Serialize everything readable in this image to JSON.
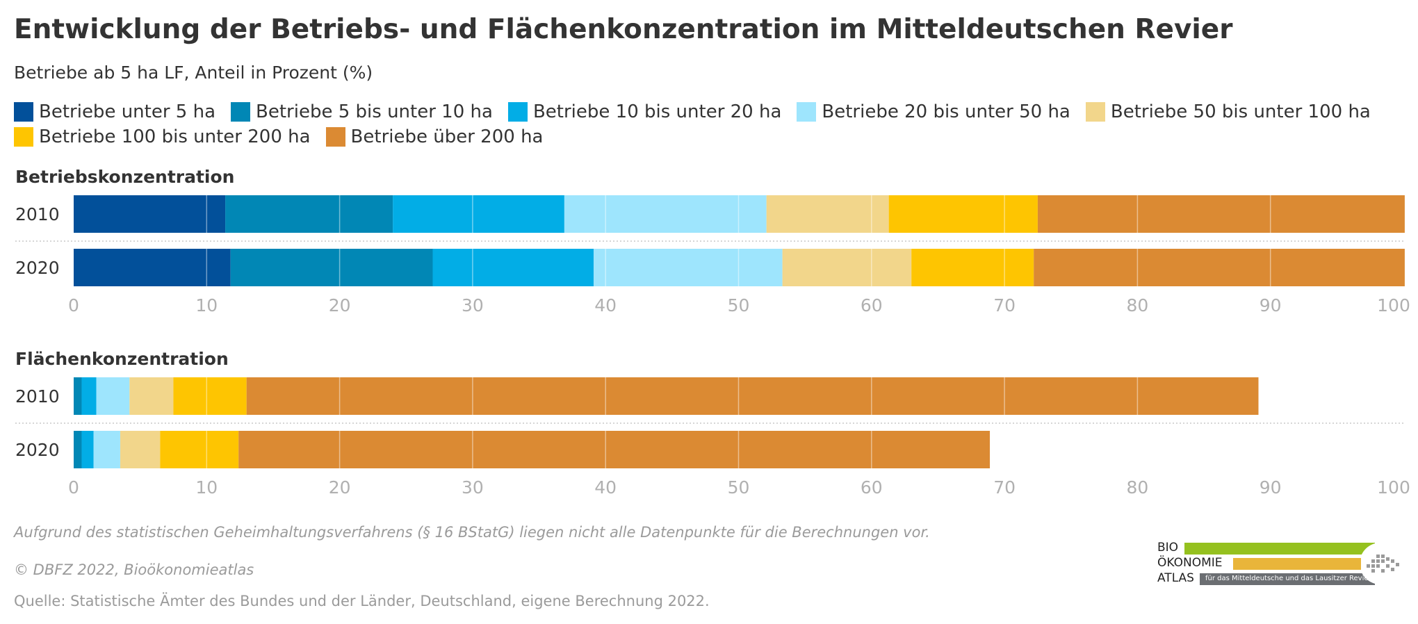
{
  "title": "Entwicklung der Betriebs- und Flächenkonzentration im Mitteldeutschen Revier",
  "subtitle": "Betriebe ab 5 ha LF, Anteil in Prozent (%)",
  "legend": [
    {
      "label": "Betriebe unter 5 ha",
      "color": "#02509a"
    },
    {
      "label": "Betriebe 5 bis unter 10 ha",
      "color": "#0187b5"
    },
    {
      "label": "Betriebe 10 bis unter 20 ha",
      "color": "#02ade6"
    },
    {
      "label": "Betriebe 20 bis unter 50 ha",
      "color": "#9ee5fd"
    },
    {
      "label": "Betriebe 50 bis unter 100 ha",
      "color": "#f2d68b"
    },
    {
      "label": "Betriebe 100 bis unter 200 ha",
      "color": "#fec501"
    },
    {
      "label": "Betriebe über 200 ha",
      "color": "#db8a33"
    }
  ],
  "chart_data": [
    {
      "type": "bar",
      "orientation": "horizontal",
      "stacked": true,
      "title": "Betriebskonzentration",
      "categories": [
        "2010",
        "2020"
      ],
      "xlim": [
        0,
        100
      ],
      "xticks": [
        "0",
        "10",
        "20",
        "30",
        "40",
        "50",
        "60",
        "70",
        "80",
        "90",
        "100"
      ],
      "grid": true,
      "series": [
        {
          "name": "Betriebe unter 5 ha",
          "values": [
            11.4,
            11.8
          ]
        },
        {
          "name": "Betriebe 5 bis unter 10 ha",
          "values": [
            12.6,
            15.2
          ]
        },
        {
          "name": "Betriebe 10 bis unter 20 ha",
          "values": [
            12.9,
            12.1
          ]
        },
        {
          "name": "Betriebe 20 bis unter 50 ha",
          "values": [
            15.2,
            14.2
          ]
        },
        {
          "name": "Betriebe 50 bis unter 100 ha",
          "values": [
            9.2,
            9.7
          ]
        },
        {
          "name": "Betriebe 100 bis unter 200 ha",
          "values": [
            11.2,
            9.2
          ]
        },
        {
          "name": "Betriebe über 200 ha",
          "values": [
            27.6,
            27.9
          ]
        }
      ]
    },
    {
      "type": "bar",
      "orientation": "horizontal",
      "stacked": true,
      "title": "Flächenkonzentration",
      "categories": [
        "2010",
        "2020"
      ],
      "xlim": [
        0,
        100
      ],
      "xticks": [
        "0",
        "10",
        "20",
        "30",
        "40",
        "50",
        "60",
        "70",
        "80",
        "90",
        "100"
      ],
      "grid": true,
      "series": [
        {
          "name": "Betriebe unter 5 ha",
          "values": [
            0.0,
            0.0
          ]
        },
        {
          "name": "Betriebe 5 bis unter 10 ha",
          "values": [
            0.6,
            0.6
          ]
        },
        {
          "name": "Betriebe 10 bis unter 20 ha",
          "values": [
            1.1,
            0.9
          ]
        },
        {
          "name": "Betriebe 20 bis unter 50 ha",
          "values": [
            2.5,
            2.0
          ]
        },
        {
          "name": "Betriebe 50 bis unter 100 ha",
          "values": [
            3.3,
            3.0
          ]
        },
        {
          "name": "Betriebe 100 bis unter 200 ha",
          "values": [
            5.5,
            5.9
          ]
        },
        {
          "name": "Betriebe über 200 ha",
          "values": [
            76.1,
            56.5
          ]
        }
      ]
    }
  ],
  "footnote": "Aufgrund des statistischen Geheimhaltungsverfahrens (§ 16 BStatG) liegen nicht alle Datenpunkte für die Berechnungen vor.",
  "copyright": "© DBFZ 2022, Bioökonomieatlas",
  "source": "Quelle: Statistische Ämter des Bundes und der Länder, Deutschland, eigene Berechnung 2022.",
  "logo": {
    "line1": "BIO",
    "line2": "ÖKONOMIE",
    "line3": "ATLAS",
    "tagline": "für das Mitteldeutsche und das Lausitzer Revier",
    "colors": {
      "green": "#95c11f",
      "yellow": "#e9b53a",
      "gray": "#6b6e72"
    }
  }
}
